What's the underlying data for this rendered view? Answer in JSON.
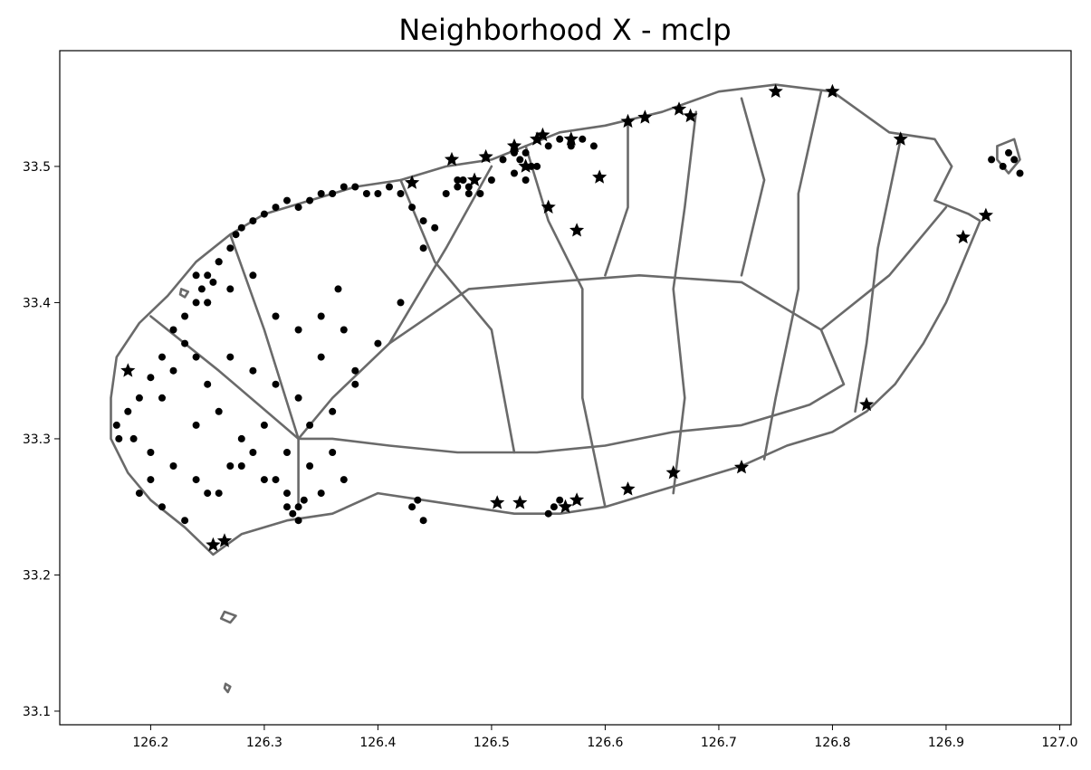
{
  "chart_data": {
    "type": "scatter",
    "title": "Neighborhood X - mclp",
    "xlabel": "",
    "ylabel": "",
    "xlim": [
      126.12,
      127.01
    ],
    "ylim": [
      33.09,
      33.585
    ],
    "xticks": [
      "126.2",
      "126.3",
      "126.4",
      "126.5",
      "126.6",
      "126.7",
      "126.8",
      "126.9",
      "127.0"
    ],
    "xtick_values": [
      126.2,
      126.3,
      126.4,
      126.5,
      126.6,
      126.7,
      126.8,
      126.9,
      127.0
    ],
    "yticks": [
      "33.1",
      "33.2",
      "33.3",
      "33.4",
      "33.5"
    ],
    "ytick_values": [
      33.1,
      33.2,
      33.3,
      33.4,
      33.5
    ],
    "grid": false,
    "colors": {
      "roads": "#6a6a6a",
      "points": "#000000",
      "stars": "#000000"
    },
    "road_network": {
      "outline": [
        [
          126.165,
          33.33
        ],
        [
          126.17,
          33.36
        ],
        [
          126.19,
          33.385
        ],
        [
          126.215,
          33.405
        ],
        [
          126.24,
          33.43
        ],
        [
          126.27,
          33.45
        ],
        [
          126.3,
          33.465
        ],
        [
          126.34,
          33.475
        ],
        [
          126.38,
          33.485
        ],
        [
          126.42,
          33.49
        ],
        [
          126.46,
          33.5
        ],
        [
          126.5,
          33.505
        ],
        [
          126.53,
          33.515
        ],
        [
          126.56,
          33.525
        ],
        [
          126.6,
          33.53
        ],
        [
          126.65,
          33.54
        ],
        [
          126.7,
          33.555
        ],
        [
          126.75,
          33.56
        ],
        [
          126.8,
          33.555
        ],
        [
          126.85,
          33.525
        ],
        [
          126.89,
          33.52
        ],
        [
          126.905,
          33.5
        ],
        [
          126.89,
          33.475
        ],
        [
          126.92,
          33.465
        ],
        [
          126.93,
          33.46
        ],
        [
          126.915,
          33.43
        ],
        [
          126.9,
          33.4
        ],
        [
          126.88,
          33.37
        ],
        [
          126.855,
          33.34
        ],
        [
          126.83,
          33.32
        ],
        [
          126.8,
          33.305
        ],
        [
          126.76,
          33.295
        ],
        [
          126.72,
          33.28
        ],
        [
          126.68,
          33.27
        ],
        [
          126.64,
          33.26
        ],
        [
          126.6,
          33.25
        ],
        [
          126.56,
          33.245
        ],
        [
          126.52,
          33.245
        ],
        [
          126.48,
          33.25
        ],
        [
          126.44,
          33.255
        ],
        [
          126.4,
          33.26
        ],
        [
          126.36,
          33.245
        ],
        [
          126.32,
          33.24
        ],
        [
          126.28,
          33.23
        ],
        [
          126.255,
          33.215
        ],
        [
          126.23,
          33.235
        ],
        [
          126.2,
          33.255
        ],
        [
          126.18,
          33.275
        ],
        [
          126.165,
          33.3
        ],
        [
          126.165,
          33.33
        ]
      ],
      "ring_road": [
        [
          126.33,
          33.3
        ],
        [
          126.36,
          33.33
        ],
        [
          126.41,
          33.37
        ],
        [
          126.48,
          33.41
        ],
        [
          126.55,
          33.415
        ],
        [
          126.63,
          33.42
        ],
        [
          126.72,
          33.415
        ],
        [
          126.79,
          33.38
        ],
        [
          126.81,
          33.34
        ],
        [
          126.78,
          33.325
        ],
        [
          126.72,
          33.31
        ],
        [
          126.66,
          33.305
        ],
        [
          126.6,
          33.295
        ],
        [
          126.54,
          33.29
        ],
        [
          126.47,
          33.29
        ],
        [
          126.41,
          33.295
        ],
        [
          126.36,
          33.3
        ],
        [
          126.33,
          33.3
        ]
      ],
      "cross_roads": [
        [
          [
            126.53,
            33.515
          ],
          [
            126.55,
            33.46
          ],
          [
            126.58,
            33.41
          ],
          [
            126.58,
            33.33
          ],
          [
            126.6,
            33.25
          ]
        ],
        [
          [
            126.42,
            33.49
          ],
          [
            126.45,
            33.43
          ],
          [
            126.5,
            33.38
          ],
          [
            126.52,
            33.29
          ]
        ],
        [
          [
            126.68,
            33.54
          ],
          [
            126.67,
            33.47
          ],
          [
            126.66,
            33.41
          ],
          [
            126.67,
            33.33
          ],
          [
            126.66,
            33.26
          ]
        ],
        [
          [
            126.79,
            33.555
          ],
          [
            126.77,
            33.48
          ],
          [
            126.77,
            33.41
          ],
          [
            126.75,
            33.33
          ],
          [
            126.74,
            33.285
          ]
        ],
        [
          [
            126.27,
            33.45
          ],
          [
            126.3,
            33.38
          ],
          [
            126.33,
            33.3
          ],
          [
            126.33,
            33.25
          ]
        ],
        [
          [
            126.2,
            33.39
          ],
          [
            126.26,
            33.35
          ],
          [
            126.33,
            33.3
          ]
        ],
        [
          [
            126.86,
            33.52
          ],
          [
            126.84,
            33.44
          ],
          [
            126.83,
            33.37
          ],
          [
            126.82,
            33.32
          ]
        ],
        [
          [
            126.9,
            33.47
          ],
          [
            126.85,
            33.42
          ],
          [
            126.79,
            33.38
          ]
        ],
        [
          [
            126.5,
            33.5
          ],
          [
            126.46,
            33.44
          ],
          [
            126.41,
            33.37
          ]
        ],
        [
          [
            126.62,
            33.53
          ],
          [
            126.62,
            33.47
          ],
          [
            126.6,
            33.42
          ]
        ],
        [
          [
            126.72,
            33.55
          ],
          [
            126.74,
            33.49
          ],
          [
            126.72,
            33.42
          ]
        ]
      ],
      "islets": [
        [
          [
            126.945,
            33.515
          ],
          [
            126.96,
            33.52
          ],
          [
            126.965,
            33.505
          ],
          [
            126.955,
            33.495
          ],
          [
            126.945,
            33.505
          ],
          [
            126.945,
            33.515
          ]
        ],
        [
          [
            126.265,
            33.173
          ],
          [
            126.275,
            33.17
          ],
          [
            126.27,
            33.165
          ],
          [
            126.262,
            33.168
          ],
          [
            126.265,
            33.173
          ]
        ],
        [
          [
            126.266,
            33.12
          ],
          [
            126.27,
            33.118
          ],
          [
            126.268,
            33.114
          ],
          [
            126.265,
            33.117
          ],
          [
            126.266,
            33.12
          ]
        ],
        [
          [
            126.227,
            33.41
          ],
          [
            126.233,
            33.408
          ],
          [
            126.23,
            33.404
          ],
          [
            126.226,
            33.406
          ],
          [
            126.227,
            33.41
          ]
        ]
      ]
    },
    "series": [
      {
        "marker": "star",
        "x": [
          126.255,
          126.265,
          126.18,
          126.465,
          126.495,
          126.52,
          126.54,
          126.55,
          126.575,
          126.595,
          126.62,
          126.635,
          126.665,
          126.675,
          126.75,
          126.8,
          126.86,
          126.915,
          126.935,
          126.83,
          126.72,
          126.66,
          126.62,
          126.575,
          126.565,
          126.525,
          126.505,
          126.43,
          126.57,
          126.545,
          126.485,
          126.53
        ],
        "y": [
          33.222,
          33.225,
          33.35,
          33.505,
          33.507,
          33.515,
          33.52,
          33.47,
          33.453,
          33.492,
          33.533,
          33.536,
          33.542,
          33.537,
          33.555,
          33.555,
          33.52,
          33.448,
          33.464,
          33.325,
          33.279,
          33.275,
          33.263,
          33.255,
          33.25,
          33.253,
          33.253,
          33.488,
          33.52,
          33.523,
          33.49,
          33.5
        ]
      },
      {
        "marker": "circle",
        "x": [
          126.17,
          126.172,
          126.18,
          126.185,
          126.19,
          126.2,
          126.21,
          126.22,
          126.23,
          126.24,
          126.25,
          126.26,
          126.26,
          126.27,
          126.275,
          126.28,
          126.29,
          126.3,
          126.31,
          126.32,
          126.33,
          126.34,
          126.35,
          126.36,
          126.37,
          126.38,
          126.39,
          126.4,
          126.41,
          126.42,
          126.43,
          126.44,
          126.45,
          126.46,
          126.47,
          126.48,
          126.49,
          126.5,
          126.51,
          126.52,
          126.53,
          126.54,
          126.55,
          126.56,
          126.57,
          126.58,
          126.59,
          126.2,
          126.21,
          126.22,
          126.23,
          126.24,
          126.25,
          126.27,
          126.29,
          126.31,
          126.33,
          126.35,
          126.37,
          126.24,
          126.26,
          126.28,
          126.3,
          126.32,
          126.34,
          126.36,
          126.38,
          126.2,
          126.22,
          126.24,
          126.26,
          126.28,
          126.3,
          126.32,
          126.34,
          126.36,
          126.38,
          126.4,
          126.42,
          126.44,
          126.19,
          126.21,
          126.23,
          126.25,
          126.27,
          126.29,
          126.31,
          126.33,
          126.35,
          126.37,
          126.25,
          126.27,
          126.29,
          126.31,
          126.33,
          126.35,
          126.365,
          126.43,
          126.435,
          126.44,
          126.55,
          126.555,
          126.56,
          126.95,
          126.955,
          126.96,
          126.965,
          126.94,
          126.24,
          126.245,
          126.25,
          126.255,
          126.32,
          126.325,
          126.33,
          126.335,
          126.48,
          126.475,
          126.47,
          126.52,
          126.525,
          126.53,
          126.535
        ],
        "y": [
          33.31,
          33.3,
          33.32,
          33.3,
          33.33,
          33.27,
          33.36,
          33.38,
          33.39,
          33.4,
          33.42,
          33.43,
          33.43,
          33.44,
          33.45,
          33.455,
          33.46,
          33.465,
          33.47,
          33.475,
          33.47,
          33.475,
          33.48,
          33.48,
          33.485,
          33.485,
          33.48,
          33.48,
          33.485,
          33.48,
          33.47,
          33.46,
          33.455,
          33.48,
          33.49,
          33.485,
          33.48,
          33.49,
          33.505,
          33.51,
          33.51,
          33.5,
          33.515,
          33.52,
          33.515,
          33.52,
          33.515,
          33.345,
          33.33,
          33.35,
          33.37,
          33.36,
          33.34,
          33.36,
          33.35,
          33.34,
          33.33,
          33.36,
          33.38,
          33.31,
          33.32,
          33.3,
          33.31,
          33.29,
          33.31,
          33.32,
          33.34,
          33.29,
          33.28,
          33.27,
          33.26,
          33.28,
          33.27,
          33.26,
          33.28,
          33.29,
          33.35,
          33.37,
          33.4,
          33.44,
          33.26,
          33.25,
          33.24,
          33.26,
          33.28,
          33.29,
          33.27,
          33.25,
          33.26,
          33.27,
          33.4,
          33.41,
          33.42,
          33.39,
          33.38,
          33.39,
          33.41,
          33.25,
          33.255,
          33.24,
          33.245,
          33.25,
          33.255,
          33.5,
          33.51,
          33.505,
          33.495,
          33.505,
          33.42,
          33.41,
          33.4,
          33.415,
          33.25,
          33.245,
          33.24,
          33.255,
          33.48,
          33.49,
          33.485,
          33.495,
          33.505,
          33.49,
          33.5
        ]
      }
    ]
  }
}
